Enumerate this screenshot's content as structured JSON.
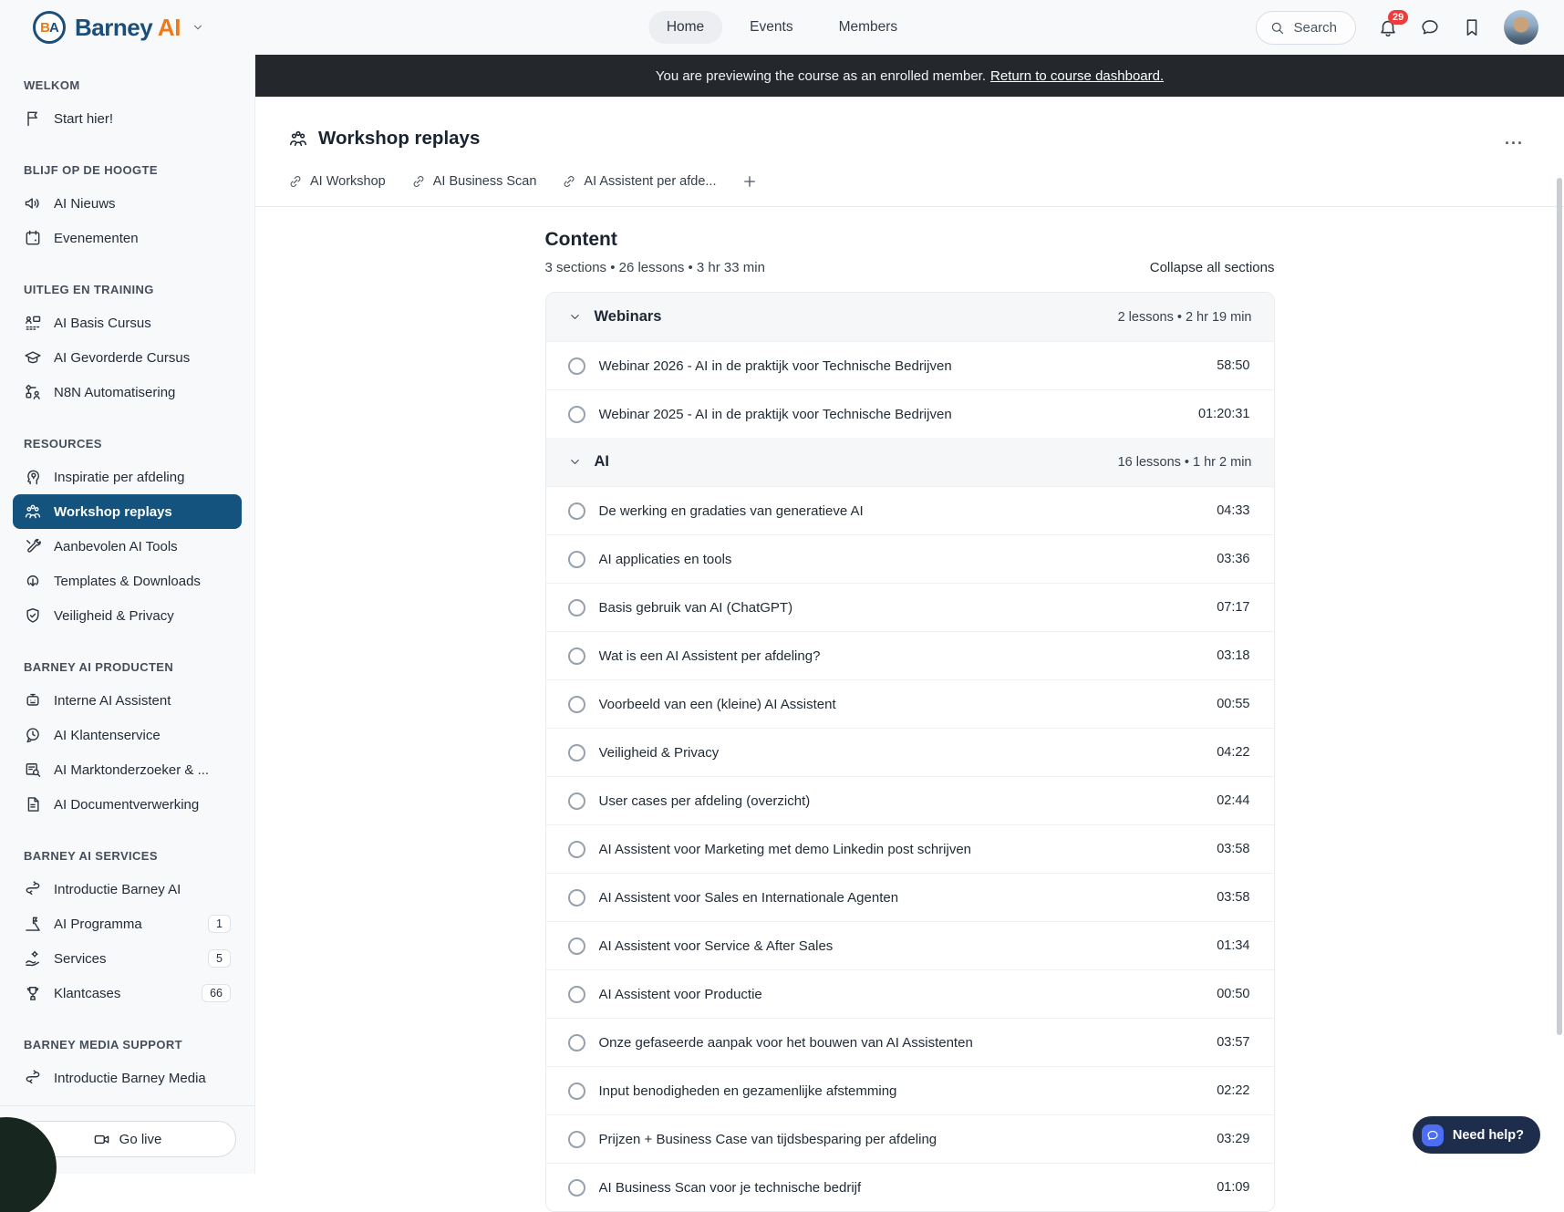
{
  "brand": {
    "name_primary": "Barney",
    "name_secondary": "AI",
    "logo_initials_1": "B",
    "logo_initials_2": "A"
  },
  "navbar": {
    "tabs": [
      {
        "label": "Home",
        "active": true
      },
      {
        "label": "Events",
        "active": false
      },
      {
        "label": "Members",
        "active": false
      }
    ],
    "search_label": "Search",
    "notification_count": "29"
  },
  "banner": {
    "text": "You are previewing the course as an enrolled member.",
    "link_label": "Return to course dashboard."
  },
  "page": {
    "title": "Workshop replays",
    "menu_label": "..."
  },
  "quick_links": {
    "items": [
      {
        "label": "AI Workshop"
      },
      {
        "label": "AI Business Scan"
      },
      {
        "label": "AI Assistent per afde..."
      }
    ]
  },
  "content": {
    "heading": "Content",
    "meta": "3 sections • 26 lessons • 3 hr 33 min",
    "collapse_label": "Collapse all sections",
    "sections": [
      {
        "title": "Webinars",
        "meta": "2 lessons • 2 hr 19 min",
        "lessons": [
          {
            "title": "Webinar 2026 - AI in de praktijk voor Technische Bedrijven",
            "duration": "58:50"
          },
          {
            "title": "Webinar 2025 - AI in de praktijk voor Technische Bedrijven",
            "duration": "01:20:31"
          }
        ]
      },
      {
        "title": "AI",
        "meta": "16 lessons • 1 hr 2 min",
        "lessons": [
          {
            "title": "De werking en gradaties van generatieve AI",
            "duration": "04:33"
          },
          {
            "title": "AI applicaties en tools",
            "duration": "03:36"
          },
          {
            "title": "Basis gebruik van AI (ChatGPT)",
            "duration": "07:17"
          },
          {
            "title": "Wat is een AI Assistent per afdeling?",
            "duration": "03:18"
          },
          {
            "title": "Voorbeeld van een (kleine) AI Assistent",
            "duration": "00:55"
          },
          {
            "title": "Veiligheid & Privacy",
            "duration": "04:22"
          },
          {
            "title": "User cases per afdeling (overzicht)",
            "duration": "02:44"
          },
          {
            "title": "AI Assistent voor Marketing met demo Linkedin post schrijven",
            "duration": "03:58"
          },
          {
            "title": "AI Assistent voor Sales en Internationale Agenten",
            "duration": "03:58"
          },
          {
            "title": "AI Assistent voor Service & After Sales",
            "duration": "01:34"
          },
          {
            "title": "AI Assistent voor Productie",
            "duration": "00:50"
          },
          {
            "title": "Onze gefaseerde aanpak voor het bouwen van AI Assistenten",
            "duration": "03:57"
          },
          {
            "title": "Input benodigheden en gezamenlijke afstemming",
            "duration": "02:22"
          },
          {
            "title": "Prijzen + Business Case van tijdsbesparing per afdeling",
            "duration": "03:29"
          },
          {
            "title": "AI Business Scan voor je technische bedrijf",
            "duration": "01:09"
          }
        ]
      }
    ]
  },
  "sidebar": {
    "groups": [
      {
        "title": "WELKOM",
        "items": [
          {
            "label": "Start hier!",
            "icon": "flag-icon"
          }
        ]
      },
      {
        "title": "BLIJF OP DE HOOGTE",
        "items": [
          {
            "label": "AI Nieuws",
            "icon": "megaphone-icon"
          },
          {
            "label": "Evenementen",
            "icon": "calendar-icon"
          }
        ]
      },
      {
        "title": "UITLEG EN TRAINING",
        "items": [
          {
            "label": "AI Basis Cursus",
            "icon": "course-icon"
          },
          {
            "label": "AI Gevorderde Cursus",
            "icon": "graduation-cap-icon"
          },
          {
            "label": "N8N Automatisering",
            "icon": "workflow-icon"
          }
        ]
      },
      {
        "title": "RESOURCES",
        "items": [
          {
            "label": "Inspiratie per afdeling",
            "icon": "idea-icon"
          },
          {
            "label": "Workshop replays",
            "icon": "group-icon",
            "active": true
          },
          {
            "label": "Aanbevolen AI Tools",
            "icon": "tools-icon"
          },
          {
            "label": "Templates & Downloads",
            "icon": "download-icon"
          },
          {
            "label": "Veiligheid & Privacy",
            "icon": "shield-check-icon"
          }
        ]
      },
      {
        "title": "BARNEY AI PRODUCTEN",
        "items": [
          {
            "label": "Interne AI Assistent",
            "icon": "robot-icon"
          },
          {
            "label": "AI Klantenservice",
            "icon": "support-icon"
          },
          {
            "label": "AI Marktonderzoeker & ...",
            "icon": "document-search-icon"
          },
          {
            "label": "AI Documentverwerking",
            "icon": "document-icon"
          }
        ]
      },
      {
        "title": "BARNEY AI SERVICES",
        "items": [
          {
            "label": "Introductie Barney AI",
            "icon": "handshake-icon"
          },
          {
            "label": "AI Programma",
            "icon": "milestone-icon",
            "badge": "1"
          },
          {
            "label": "Services",
            "icon": "service-icon",
            "badge": "5"
          },
          {
            "label": "Klantcases",
            "icon": "trophy-icon",
            "badge": "66"
          }
        ]
      },
      {
        "title": "BARNEY MEDIA SUPPORT",
        "items": [
          {
            "label": "Introductie Barney Media",
            "icon": "handshake-icon"
          }
        ]
      }
    ],
    "go_live_label": "Go live"
  },
  "help": {
    "label": "Need help?"
  }
}
